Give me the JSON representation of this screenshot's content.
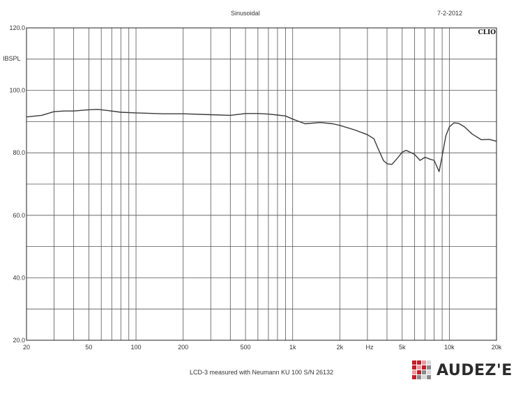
{
  "header": {
    "mode": "Sinusoidal",
    "date": "7-2-2012",
    "software": "CLIO"
  },
  "caption": "LCD-3 measured with Neumann KU 100   S/N 26132",
  "brand": {
    "name": "AUDEZ'E",
    "logo_colors": [
      "#c0202b",
      "#e89aa0",
      "#8a8a8a",
      "#d8d8d8"
    ]
  },
  "chart_data": {
    "type": "line",
    "title": "",
    "ylabel": "IBSPL",
    "xlabel": "Hz",
    "xscale": "log",
    "xlim": [
      20,
      20000
    ],
    "ylim": [
      20,
      120
    ],
    "grid": true,
    "line_color": "#3a3a3a",
    "y_ticks": [
      {
        "value": 120,
        "label": "120.0"
      },
      {
        "value": 100,
        "label": "100.0"
      },
      {
        "value": 80,
        "label": "80.0"
      },
      {
        "value": 60,
        "label": "60.0"
      },
      {
        "value": 40,
        "label": "40.0"
      },
      {
        "value": 20,
        "label": "20.0"
      }
    ],
    "y_gridlines": [
      20,
      30,
      40,
      50,
      60,
      70,
      80,
      90,
      100,
      110,
      120
    ],
    "x_ticks": [
      {
        "value": 20,
        "label": "20"
      },
      {
        "value": 50,
        "label": "50"
      },
      {
        "value": 100,
        "label": "100"
      },
      {
        "value": 200,
        "label": "200"
      },
      {
        "value": 500,
        "label": "500"
      },
      {
        "value": 1000,
        "label": "1k"
      },
      {
        "value": 2000,
        "label": "2k"
      },
      {
        "value": 5000,
        "label": "5k"
      },
      {
        "value": 10000,
        "label": "10k"
      },
      {
        "value": 20000,
        "label": "20k"
      }
    ],
    "x_gridlines": [
      20,
      30,
      40,
      50,
      60,
      70,
      80,
      90,
      100,
      200,
      300,
      400,
      500,
      600,
      700,
      800,
      900,
      1000,
      2000,
      3000,
      4000,
      5000,
      6000,
      7000,
      8000,
      9000,
      10000,
      20000
    ],
    "series": [
      {
        "x": [
          20,
          25,
          30,
          35,
          40,
          50,
          57,
          65,
          80,
          100,
          150,
          200,
          300,
          400,
          500,
          600,
          700,
          800,
          900,
          1000,
          1200,
          1500,
          1800,
          2000,
          2500,
          3000,
          3300,
          3500,
          3800,
          4000,
          4300,
          4700,
          5000,
          5300,
          6000,
          6500,
          7000,
          7500,
          8000,
          8600,
          9000,
          9500,
          10000,
          10700,
          11500,
          12500,
          14000,
          16000,
          18000,
          20000
        ],
        "y": [
          91.5,
          92.0,
          93.2,
          93.4,
          93.4,
          93.8,
          93.9,
          93.6,
          93.0,
          92.8,
          92.5,
          92.5,
          92.2,
          92.0,
          92.6,
          92.6,
          92.4,
          92.1,
          91.8,
          90.8,
          89.3,
          89.7,
          89.3,
          88.8,
          87.3,
          85.8,
          84.5,
          81.5,
          77.5,
          76.5,
          76.3,
          78.5,
          80.2,
          80.8,
          79.5,
          77.6,
          78.6,
          78.0,
          77.6,
          74.0,
          79.0,
          85.5,
          88.3,
          89.6,
          89.4,
          88.3,
          86.0,
          84.2,
          84.3,
          83.7
        ]
      }
    ]
  }
}
